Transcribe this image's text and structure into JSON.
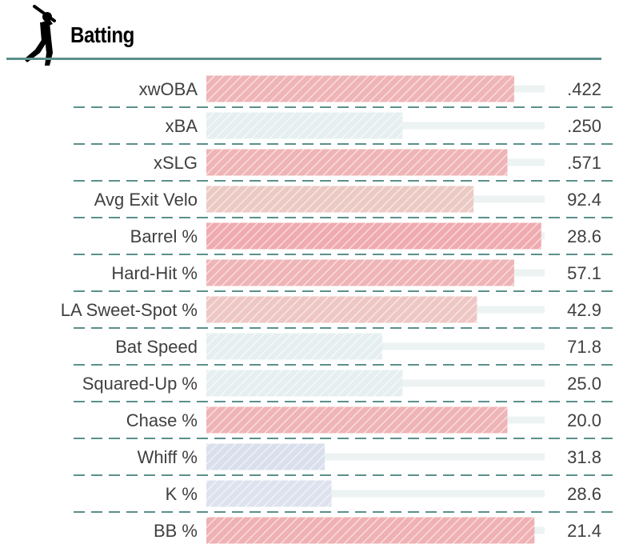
{
  "header": {
    "title": "Batting",
    "icon": "batter-silhouette-icon"
  },
  "colors": {
    "rule": "#5b908c",
    "divider": "#5b908c",
    "track": "#ecf3f2",
    "hatch_line": "#ffffff"
  },
  "chart_data": {
    "type": "bar",
    "orientation": "horizontal",
    "title": "Batting",
    "xlabel": "",
    "ylabel": "",
    "xlim": [
      0,
      100
    ],
    "categories": [
      "xwOBA",
      "xBA",
      "xSLG",
      "Avg Exit Velo",
      "Barrel %",
      "Hard-Hit %",
      "LA Sweet-Spot %",
      "Bat Speed",
      "Squared-Up %",
      "Chase %",
      "Whiff %",
      "K %",
      "BB %"
    ],
    "values": [
      91,
      58,
      89,
      79,
      99,
      91,
      80,
      52,
      58,
      89,
      35,
      37,
      97
    ],
    "value_labels": [
      ".422",
      ".250",
      ".571",
      "92.4",
      "28.6",
      "57.1",
      "42.9",
      "71.8",
      "25.0",
      "20.0",
      "31.8",
      "28.6",
      "21.4"
    ],
    "bar_colors": [
      "#efb4b6",
      "#e6eff0",
      "#efb4b6",
      "#eccac4",
      "#efabb0",
      "#efb4b6",
      "#eec7c4",
      "#e6eff0",
      "#e6eff0",
      "#efb4b6",
      "#d9dfec",
      "#dde2ee",
      "#efb1b4"
    ],
    "pattern": "diagonal-hatch"
  }
}
